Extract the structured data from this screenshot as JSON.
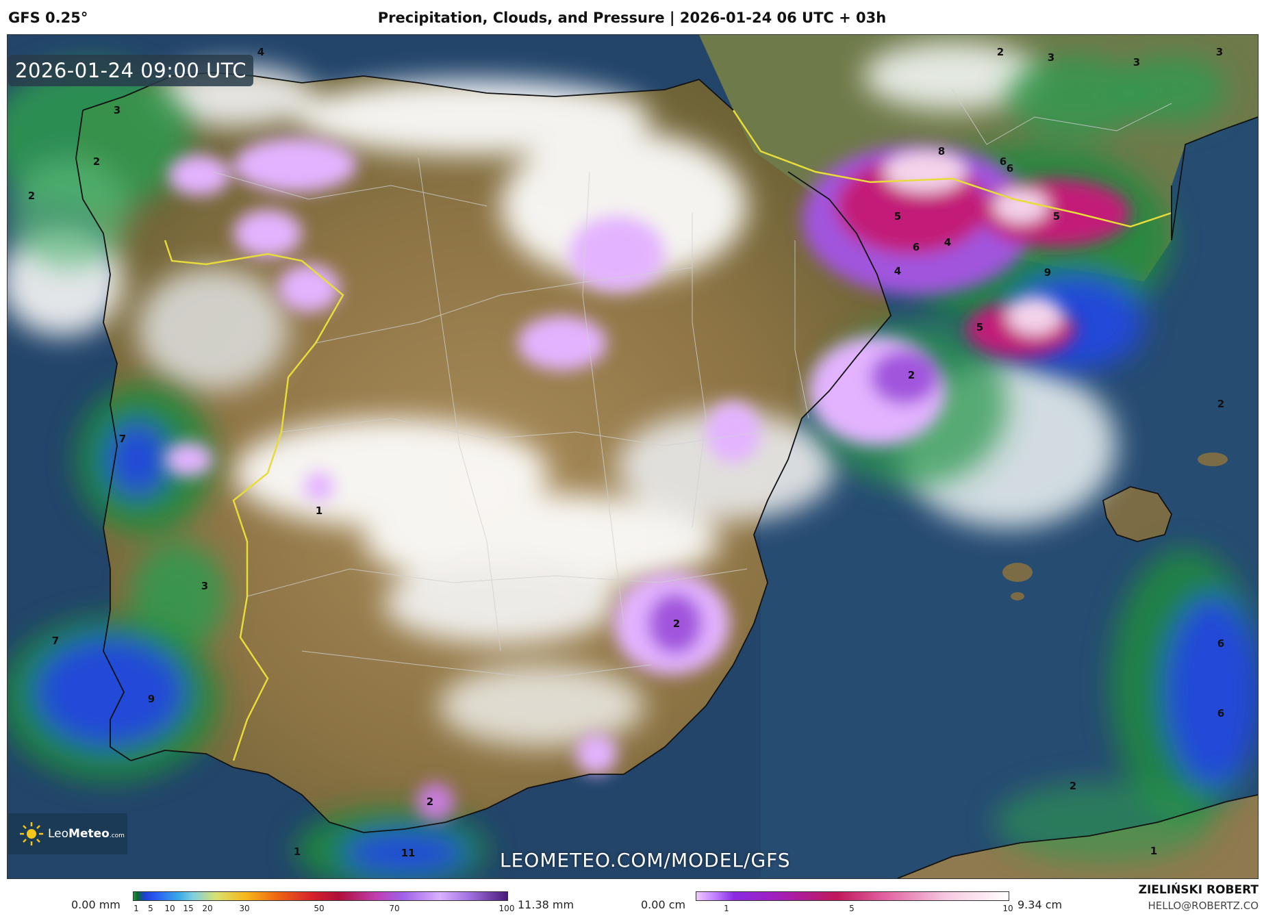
{
  "header": {
    "model": "GFS 0.25°",
    "title": "Precipitation, Clouds, and Pressure | 2026-01-24 06 UTC + 03h"
  },
  "map": {
    "valid_time": "2026-01-24 09:00 UTC",
    "watermark": "LEOMETEO.COM/MODEL/GFS",
    "logo": {
      "name_light": "Leo",
      "name_bold": "Meteo",
      "suffix": ".com"
    },
    "labels": [
      {
        "id": "n4-top",
        "text": "4"
      },
      {
        "id": "n3-galicia",
        "text": "3"
      },
      {
        "id": "n2-galicia-a",
        "text": "2"
      },
      {
        "id": "n2-galicia-b",
        "text": "2"
      },
      {
        "id": "n7-portugal",
        "text": "7"
      },
      {
        "id": "n1-center",
        "text": "1"
      },
      {
        "id": "n3-portugal-s",
        "text": "3"
      },
      {
        "id": "n7-atlantic",
        "text": "7"
      },
      {
        "id": "n9-atlantic",
        "text": "9"
      },
      {
        "id": "n2-south",
        "text": "2"
      },
      {
        "id": "n11-alboran",
        "text": "11"
      },
      {
        "id": "n1-alboran",
        "text": "1"
      },
      {
        "id": "n2-murcia",
        "text": "2"
      },
      {
        "id": "n8-pyrenees",
        "text": "8"
      },
      {
        "id": "n6-pyr-a",
        "text": "6"
      },
      {
        "id": "n6-pyr-b",
        "text": "6"
      },
      {
        "id": "n5-pyr-a",
        "text": "5"
      },
      {
        "id": "n4-pyr",
        "text": "4"
      },
      {
        "id": "n6-pyr-c",
        "text": "6"
      },
      {
        "id": "n5-pyr-b",
        "text": "5"
      },
      {
        "id": "n4-ebro",
        "text": "4"
      },
      {
        "id": "n9-catalonia",
        "text": "9"
      },
      {
        "id": "n5-catalonia",
        "text": "5"
      },
      {
        "id": "n2-ebro",
        "text": "2"
      },
      {
        "id": "n2-france-a",
        "text": "2"
      },
      {
        "id": "n3-france-a",
        "text": "3"
      },
      {
        "id": "n3-france-b",
        "text": "3"
      },
      {
        "id": "n3-france-c",
        "text": "3"
      },
      {
        "id": "n2-med-e",
        "text": "2"
      },
      {
        "id": "n6-med-a",
        "text": "6"
      },
      {
        "id": "n6-med-b",
        "text": "6"
      },
      {
        "id": "n2-algeria",
        "text": "2"
      },
      {
        "id": "n1-algeria",
        "text": "1"
      }
    ]
  },
  "legend": {
    "precip": {
      "min_label": "0.00 mm",
      "max_label": "11.38 mm",
      "ticks": [
        "1",
        "5",
        "10",
        "15",
        "20",
        "30",
        "50",
        "70",
        "100"
      ],
      "colors": [
        "#1a9e3a",
        "#1d3fd8",
        "#37a9e8",
        "#f6b81a",
        "#d4202a",
        "#a060e8",
        "#4a1a7a"
      ]
    },
    "snow": {
      "min_label": "0.00 cm",
      "max_label": "9.34 cm",
      "ticks": [
        "1",
        "5",
        "10"
      ],
      "colors": [
        "#c080ff",
        "#c0185a",
        "#ffffff"
      ]
    }
  },
  "author": {
    "name": "ZIELIŃSKI ROBERT",
    "email": "HELLO@ROBERTZ.CO"
  }
}
